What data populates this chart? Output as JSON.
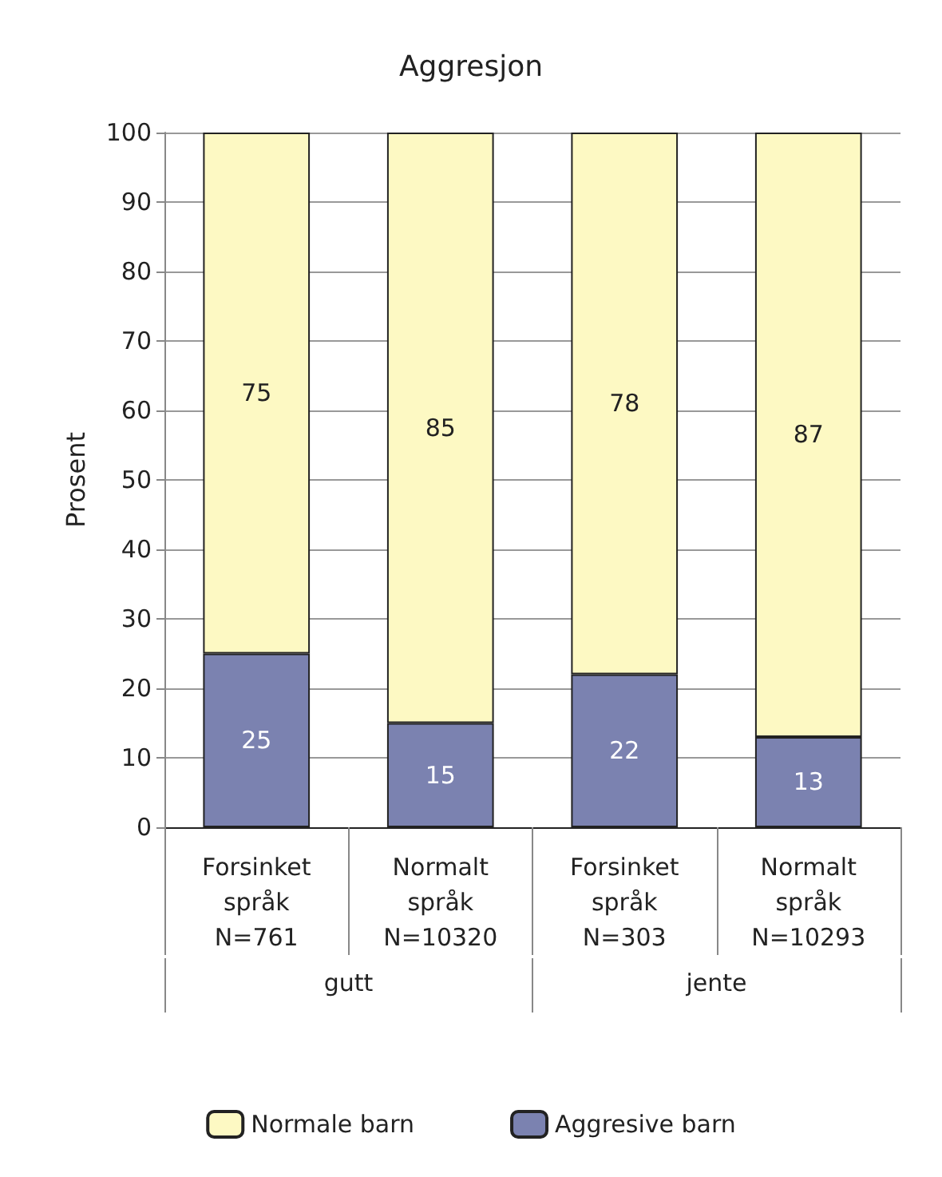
{
  "chart_data": {
    "type": "bar",
    "title": "Aggresjon",
    "ylabel": "Prosent",
    "stacked": true,
    "categories": [
      "Forsinket\nspråk\nN=761",
      "Normalt\nspråk\nN=10320",
      "Forsinket\nspråk\nN=303",
      "Normalt\nspråk\nN=10293"
    ],
    "series": [
      {
        "name": "Aggresive barn",
        "color": "#7b82b0",
        "values": [
          25,
          15,
          22,
          13
        ]
      },
      {
        "name": "Normale barn",
        "color": "#fdf9c3",
        "values": [
          75,
          85,
          78,
          87
        ]
      }
    ],
    "annotations": [
      "gutt",
      "jente"
    ],
    "data_labels": true,
    "ylim": [
      0,
      100
    ],
    "yticks": [
      0,
      10,
      20,
      30,
      40,
      50,
      60,
      70,
      80,
      90,
      100
    ],
    "grid": "y",
    "legend": "bottom"
  }
}
